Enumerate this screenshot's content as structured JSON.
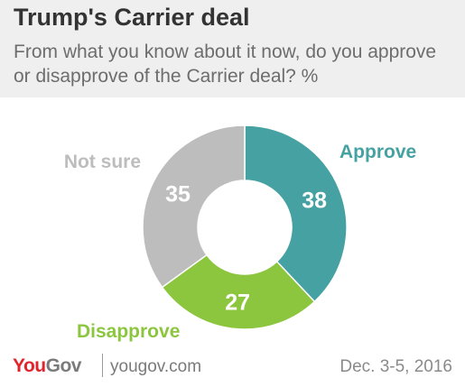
{
  "header": {
    "title": "Trump's Carrier deal",
    "subtitle": "From what you know about it now, do you approve or disapprove of the Carrier deal? %"
  },
  "chart_data": {
    "type": "pie",
    "donut": true,
    "title": "Trump's Carrier deal",
    "subtitle": "From what you know about it now, do you approve or disapprove of the Carrier deal? %",
    "categories": [
      "Approve",
      "Disapprove",
      "Not sure"
    ],
    "values": [
      38,
      27,
      35
    ],
    "colors": [
      "#46a2a2",
      "#8cc63f",
      "#bdbdbd"
    ],
    "legend": "direct labels"
  },
  "footer": {
    "brand_you": "You",
    "brand_gov": "Gov",
    "site": "yougov.com",
    "date": "Dec. 3-5, 2016"
  }
}
